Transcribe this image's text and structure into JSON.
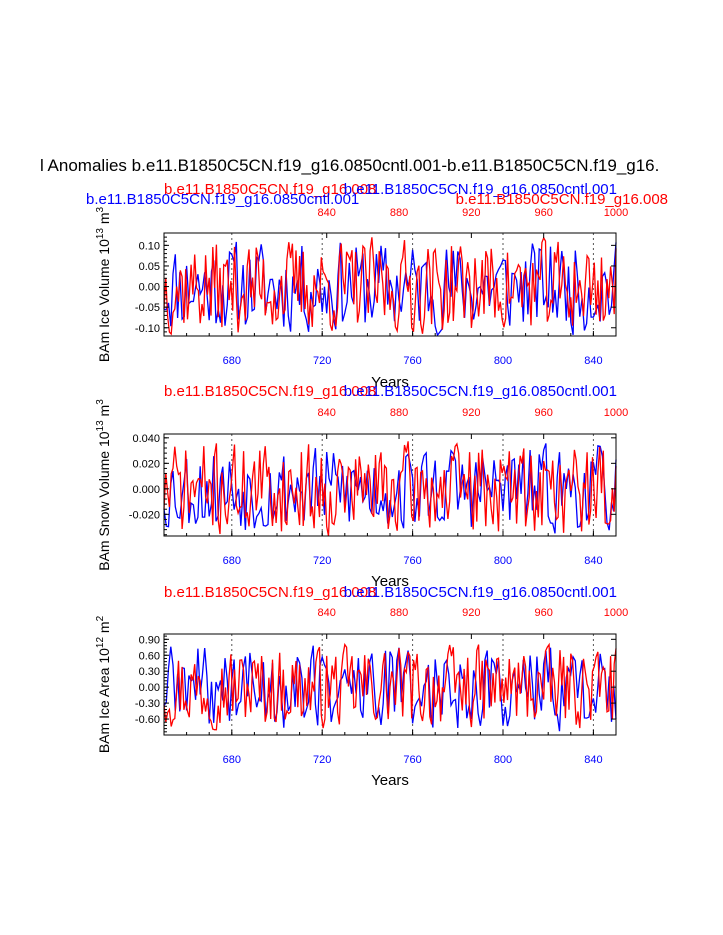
{
  "page_title": "l Anomalies b.e11.B1850C5CN.f19_g16.0850cntl.001-b.e11.B1850C5CN.f19_g16.",
  "colors": {
    "series_a": "#0000ff",
    "series_b": "#ff0000",
    "axis": "#000000",
    "grid": "#555555"
  },
  "chart_data": [
    {
      "type": "line",
      "ylabel": "BAm Ice Volume 10",
      "ylabel_exp": "13",
      "ylabel_unit": " m",
      "ylabel_unit_exp": "3",
      "xlabel": "Years",
      "top_titles": [
        {
          "text": "b.e11.B1850C5CN.f19_g16.008",
          "color": "#ff0000",
          "row": "upper",
          "anchor": "left"
        },
        {
          "text": "b.e11.B1850C5CN.f19_g16.0850cntl.001",
          "color": "#0000ff",
          "row": "upper",
          "anchor": "right"
        },
        {
          "text": "b.e11.B1850C5CN.f19_g16.0850cntl.001",
          "color": "#0000ff",
          "row": "lower",
          "anchor": "left"
        },
        {
          "text": "b.e11.B1850C5CN.f19_g16.008",
          "color": "#ff0000",
          "row": "lower",
          "anchor": "right"
        }
      ],
      "bottom_xlim": [
        650,
        850
      ],
      "bottom_ticks": [
        "680",
        "720",
        "760",
        "800",
        "840"
      ],
      "top_xlim": [
        750,
        1000
      ],
      "top_ticks": [
        "840",
        "880",
        "920",
        "960",
        "1000"
      ],
      "ylim": [
        -0.12,
        0.13
      ],
      "ytick_values": [
        0.1,
        0.05,
        0.0,
        -0.05,
        -0.1
      ],
      "ytick_labels": [
        "0.10",
        "0.05",
        "0.00",
        "-0.05",
        "-0.10"
      ],
      "vlines_at": [
        680,
        720,
        760,
        800,
        840
      ],
      "series": [
        {
          "name": "b.e11.B1850C5CN.f19_g16.0850cntl.001",
          "color": "#0000ff",
          "x_start": 650,
          "step": 1,
          "amp": 0.118,
          "seed": 11
        },
        {
          "name": "b.e11.B1850C5CN.f19_g16.008",
          "color": "#ff0000",
          "x_start": 750,
          "step": 1,
          "amp": 0.12,
          "seed": 37
        }
      ]
    },
    {
      "type": "line",
      "ylabel": "BAm Snow Volume 10",
      "ylabel_exp": "13",
      "ylabel_unit": " m",
      "ylabel_unit_exp": "3",
      "xlabel": "Years",
      "top_titles": [
        {
          "text": "b.e11.B1850C5CN.f19_g16.008",
          "color": "#ff0000",
          "row": "upper",
          "anchor": "left"
        },
        {
          "text": "b.e11.B1850C5CN.f19_g16.0850cntl.001",
          "color": "#0000ff",
          "row": "upper",
          "anchor": "right"
        }
      ],
      "bottom_xlim": [
        650,
        850
      ],
      "bottom_ticks": [
        "680",
        "720",
        "760",
        "800",
        "840"
      ],
      "top_xlim": [
        750,
        1000
      ],
      "top_ticks": [
        "840",
        "880",
        "920",
        "960",
        "1000"
      ],
      "ylim": [
        -0.037,
        0.043
      ],
      "ytick_values": [
        0.04,
        0.02,
        0.0,
        -0.02
      ],
      "ytick_labels": [
        "0.040",
        "0.020",
        "0.000",
        "-0.020"
      ],
      "vlines_at": [
        680,
        720,
        760,
        800,
        840
      ],
      "series": [
        {
          "name": "b.e11.B1850C5CN.f19_g16.0850cntl.001",
          "color": "#0000ff",
          "x_start": 650,
          "step": 1,
          "amp": 0.036,
          "seed": 53
        },
        {
          "name": "b.e11.B1850C5CN.f19_g16.008",
          "color": "#ff0000",
          "x_start": 750,
          "step": 1,
          "amp": 0.038,
          "seed": 71
        }
      ]
    },
    {
      "type": "line",
      "ylabel": "BAm Ice Area 10",
      "ylabel_exp": "12",
      "ylabel_unit": " m",
      "ylabel_unit_exp": "2",
      "xlabel": "Years",
      "top_titles": [
        {
          "text": "b.e11.B1850C5CN.f19_g16.008",
          "color": "#ff0000",
          "row": "upper",
          "anchor": "left"
        },
        {
          "text": "b.e11.B1850C5CN.f19_g16.0850cntl.001",
          "color": "#0000ff",
          "row": "upper",
          "anchor": "right"
        }
      ],
      "bottom_xlim": [
        650,
        850
      ],
      "bottom_ticks": [
        "680",
        "720",
        "760",
        "800",
        "840"
      ],
      "top_xlim": [
        750,
        1000
      ],
      "top_ticks": [
        "840",
        "880",
        "920",
        "960",
        "1000"
      ],
      "ylim": [
        -0.9,
        1.0
      ],
      "ytick_values": [
        0.9,
        0.6,
        0.3,
        0.0,
        -0.3,
        -0.6
      ],
      "ytick_labels": [
        "0.90",
        "0.60",
        "0.30",
        "0.00",
        "-0.30",
        "-0.60"
      ],
      "vlines_at": [
        680,
        720,
        760,
        800,
        840
      ],
      "series": [
        {
          "name": "b.e11.B1850C5CN.f19_g16.0850cntl.001",
          "color": "#0000ff",
          "x_start": 650,
          "step": 1,
          "amp": 0.85,
          "seed": 89
        },
        {
          "name": "b.e11.B1850C5CN.f19_g16.008",
          "color": "#ff0000",
          "x_start": 750,
          "step": 1,
          "amp": 0.8,
          "seed": 97
        }
      ]
    }
  ]
}
